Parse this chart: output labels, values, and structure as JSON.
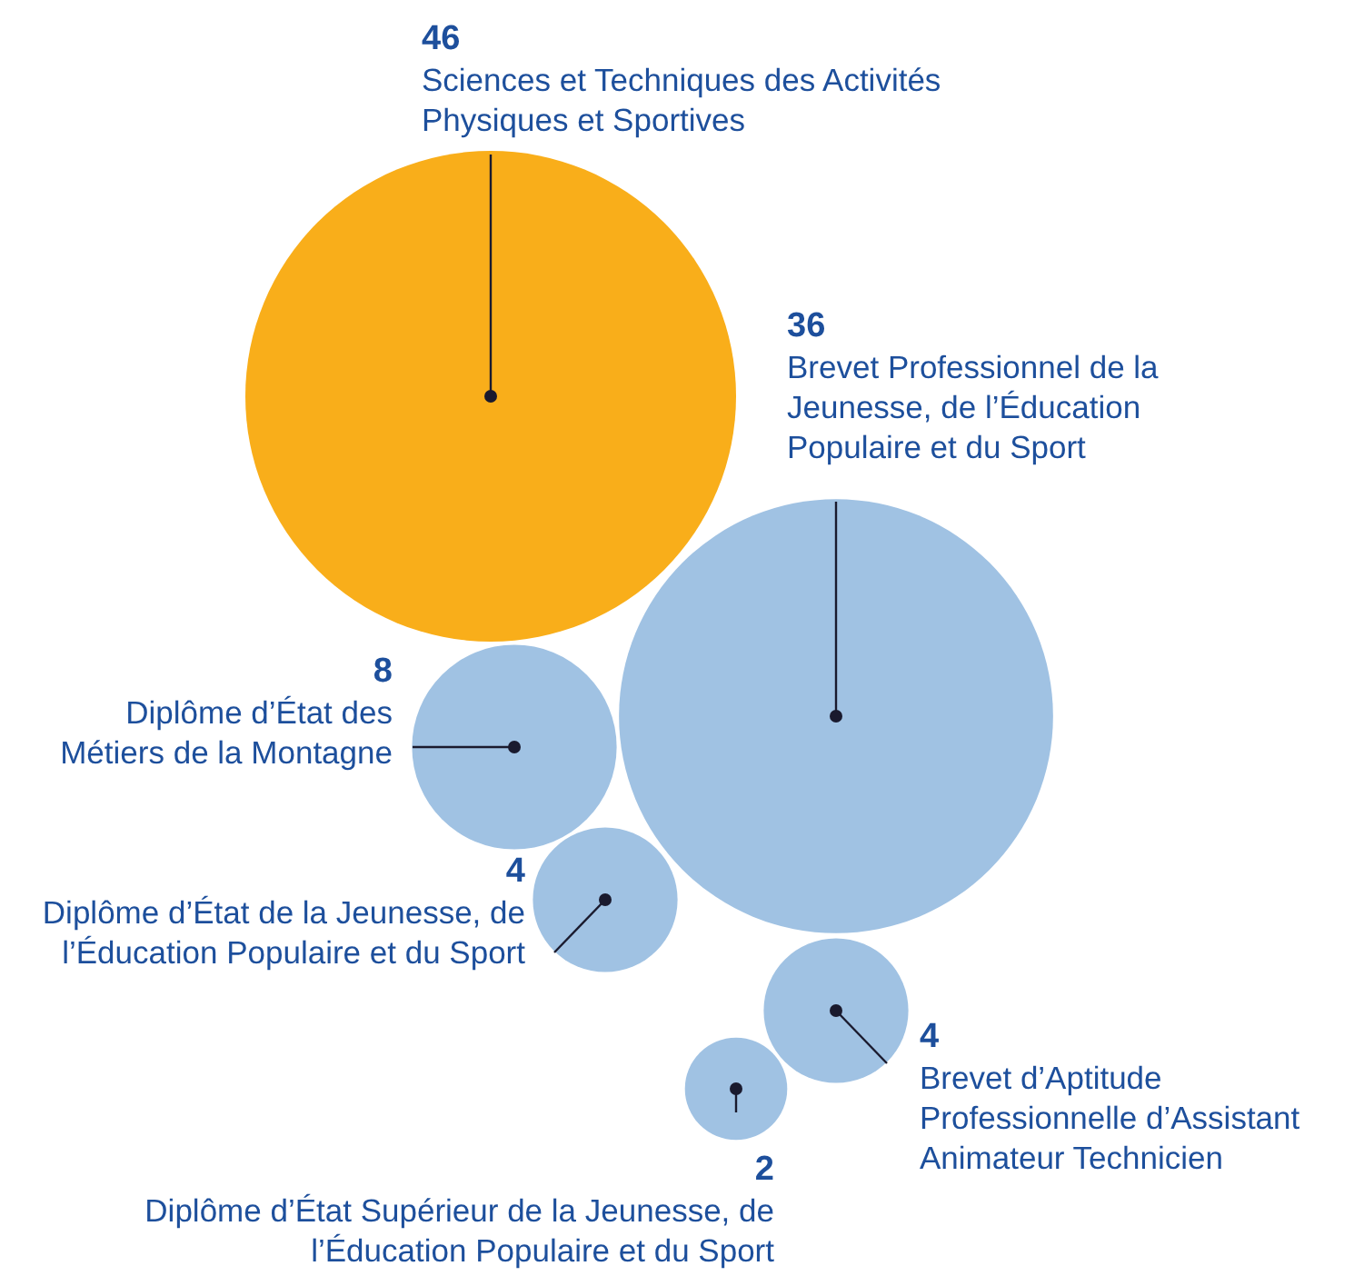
{
  "chart_data": {
    "type": "other",
    "categories": [
      "Sciences et Techniques des Activités Physiques et Sportives",
      "Brevet Professionnel de la Jeunesse, de l’Éducation Populaire et du Sport",
      "Diplôme d’État des Métiers de la Montagne",
      "Diplôme d’État de la Jeunesse, de l’Éducation Populaire et du Sport",
      "Brevet d’Aptitude Professionnelle d’Assistant Animateur Technicien",
      "Diplôme d’État Supérieur de la Jeunesse, de l’Éducation Populaire et du Sport"
    ],
    "values": [
      46,
      36,
      8,
      4,
      4,
      2
    ],
    "colors": [
      "#f9ae1a",
      "#a0c2e3",
      "#a0c2e3",
      "#a0c2e3",
      "#a0c2e3",
      "#a0c2e3"
    ],
    "data_labels": true
  }
}
